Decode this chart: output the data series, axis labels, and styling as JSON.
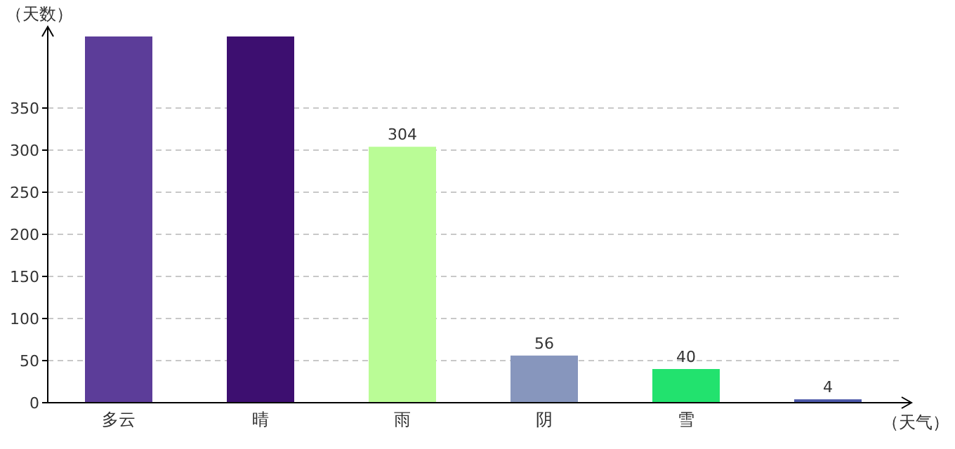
{
  "chart_data": {
    "type": "bar",
    "xlabel": "（天气）",
    "ylabel": "（天数）",
    "categories": [
      "多云",
      "晴",
      "雨",
      "阴",
      "雪",
      null
    ],
    "values": [
      435,
      435,
      304,
      56,
      40,
      4
    ],
    "colors": [
      "#5c3d99",
      "#3d0f70",
      "#bafc96",
      "#8796bd",
      "#22e26e",
      "#4a56a8"
    ],
    "value_labels": [
      null,
      null,
      "304",
      "56",
      "40",
      "4"
    ],
    "ylim": [
      0,
      435
    ],
    "yticks": [
      0,
      50,
      100,
      150,
      200,
      250,
      300,
      350
    ],
    "grid": "y"
  }
}
